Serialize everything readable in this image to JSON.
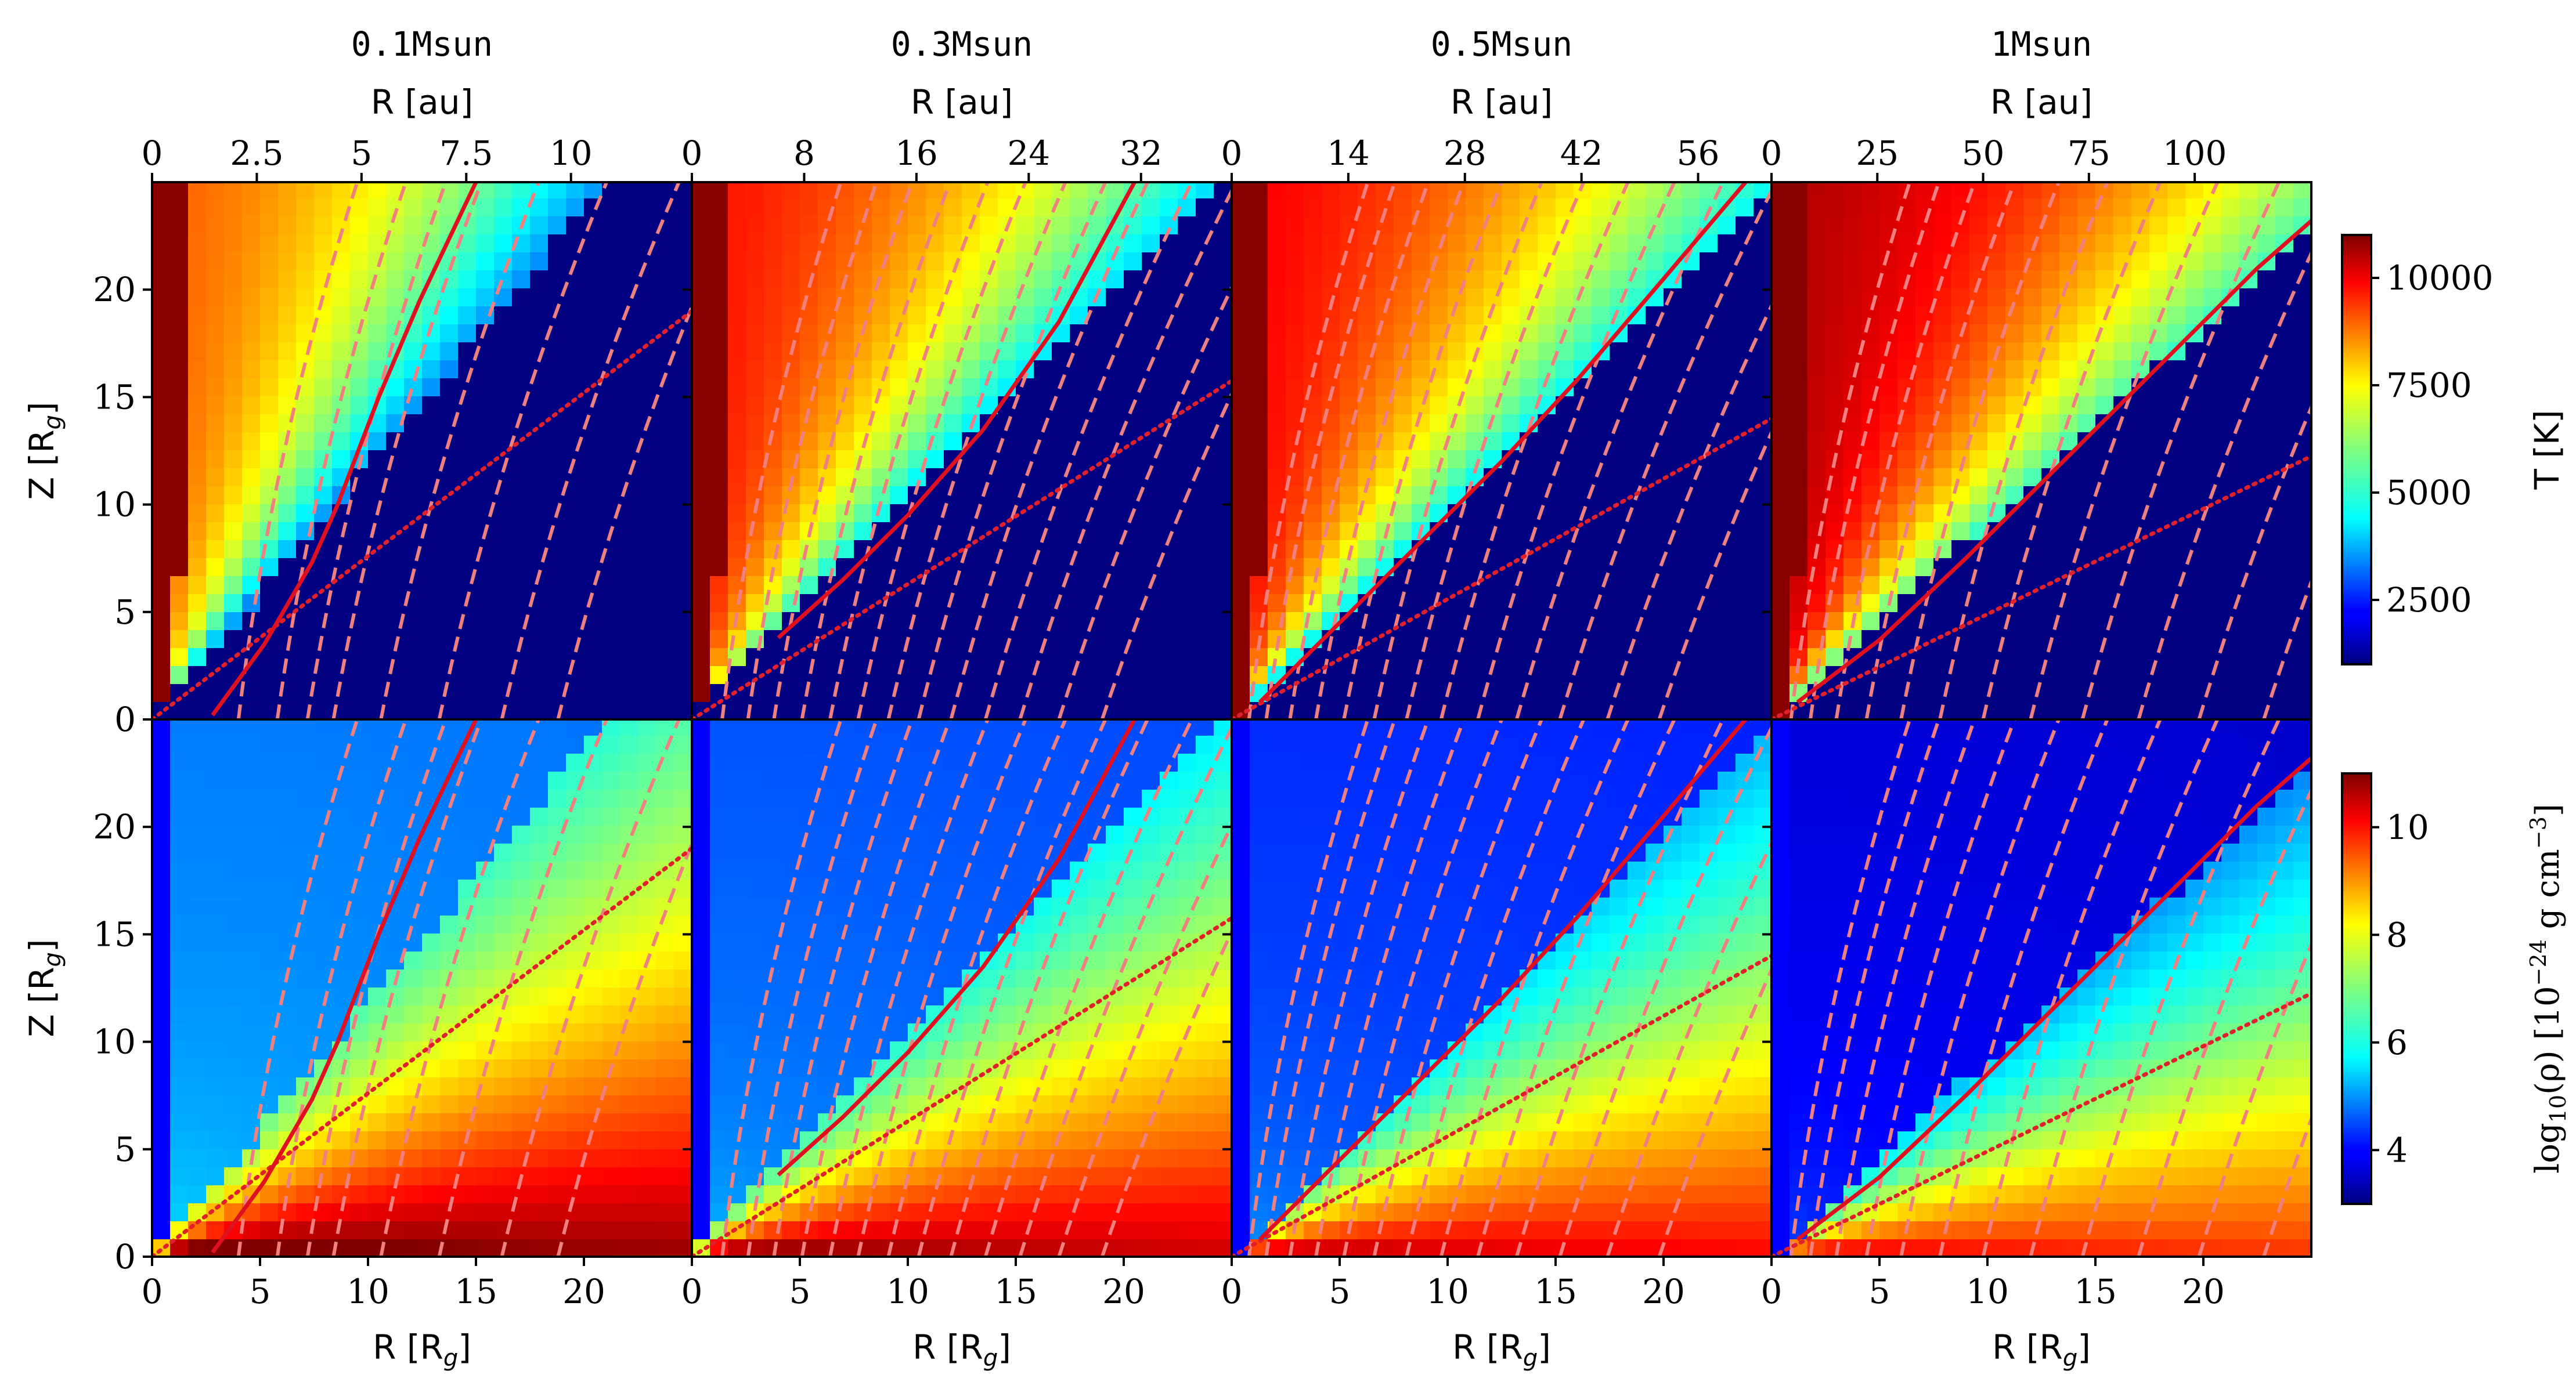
{
  "chart_data": {
    "type": "heatmap",
    "panels_per_row": 4,
    "rows": 2,
    "masses": [
      "0.1Msun",
      "0.3Msun",
      "0.5Msun",
      "1Msun"
    ],
    "top_axis_label": "R [au]",
    "top_ticks": [
      [
        "0",
        "2.5",
        "5",
        "7.5",
        "10"
      ],
      [
        "0",
        "8",
        "16",
        "24",
        "32"
      ],
      [
        "0",
        "14",
        "28",
        "42",
        "56"
      ],
      [
        "0",
        "25",
        "50",
        "75",
        "100"
      ]
    ],
    "top_tick_values_rg": [
      [
        0,
        4.85,
        9.7,
        14.55,
        19.4
      ],
      [
        0,
        5.2,
        10.4,
        15.6,
        20.8
      ],
      [
        0,
        5.4,
        10.8,
        16.2,
        21.6
      ],
      [
        0,
        4.9,
        9.8,
        14.7,
        19.6
      ]
    ],
    "xlabel": "R [R",
    "xlabel_sub": "g",
    "xlabel_end": "]",
    "ylabel": "Z [R",
    "ylabel_sub": "g",
    "ylabel_end": "]",
    "x_ticks": [
      "0",
      "5",
      "10",
      "15",
      "20"
    ],
    "y_ticks": [
      "0",
      "5",
      "10",
      "15",
      "20"
    ],
    "xlim": [
      0,
      25
    ],
    "ylim": [
      0,
      25
    ],
    "colorbars": [
      {
        "label": "T [K]",
        "ticks": [
          "2500",
          "5000",
          "7500",
          "10000"
        ],
        "tick_values": [
          2500,
          5000,
          7500,
          10000
        ],
        "range": [
          1000,
          11000
        ],
        "colormap": "jet"
      },
      {
        "label": "log",
        "label_sub": "10",
        "label_mid": "(ρ) [10",
        "label_sup": "−24",
        "label_mid2": " g cm",
        "label_sup2": "−3",
        "label_end": "]",
        "ticks": [
          "4",
          "6",
          "8",
          "10"
        ],
        "tick_values": [
          4,
          6,
          8,
          10
        ],
        "range": [
          3,
          11
        ],
        "colormap": "jet"
      }
    ],
    "sonic_surface_slopes": [
      0.76,
      0.63,
      0.56,
      0.49
    ],
    "solid_streamline_points": [
      [
        [
          2.8,
          0.2
        ],
        [
          5.2,
          3.5
        ],
        [
          7.4,
          7.3
        ],
        [
          8.6,
          10.0
        ],
        [
          10.5,
          15.0
        ],
        [
          12.4,
          19.5
        ],
        [
          15.0,
          25.0
        ]
      ],
      [
        [
          4.0,
          3.8
        ],
        [
          7.0,
          6.5
        ],
        [
          10.0,
          9.5
        ],
        [
          13.5,
          13.5
        ],
        [
          17.0,
          18.5
        ],
        [
          20.5,
          25.0
        ]
      ],
      [
        [
          1.3,
          0.8
        ],
        [
          5.0,
          4.5
        ],
        [
          9.0,
          8.5
        ],
        [
          12.5,
          12.0
        ],
        [
          16.0,
          15.8
        ],
        [
          20.0,
          20.5
        ],
        [
          23.8,
          25.0
        ]
      ],
      [
        [
          1.2,
          0.8
        ],
        [
          5.0,
          3.7
        ],
        [
          9.0,
          7.5
        ],
        [
          13.5,
          12.0
        ],
        [
          18.0,
          16.5
        ],
        [
          22.5,
          21.0
        ],
        [
          25.0,
          23.2
        ]
      ]
    ],
    "dashed_streamline_bases": [
      [
        4.0,
        5.8,
        7.2,
        8.4,
        10.6,
        13.3,
        16.2,
        18.8
      ],
      [
        1.4,
        2.6,
        3.8,
        5.1,
        6.4,
        7.7,
        9.1,
        10.5,
        12.0,
        13.6,
        15.2,
        17.0,
        19.0
      ],
      [
        0.8,
        1.6,
        2.7,
        3.9,
        5.2,
        6.6,
        8.1,
        9.7,
        11.4,
        13.2,
        15.2,
        17.4,
        19.8
      ],
      [
        0.9,
        1.8,
        3.0,
        4.4,
        6.0,
        7.8,
        9.8,
        12.0,
        14.4,
        17.0,
        19.8,
        22.8
      ]
    ]
  }
}
